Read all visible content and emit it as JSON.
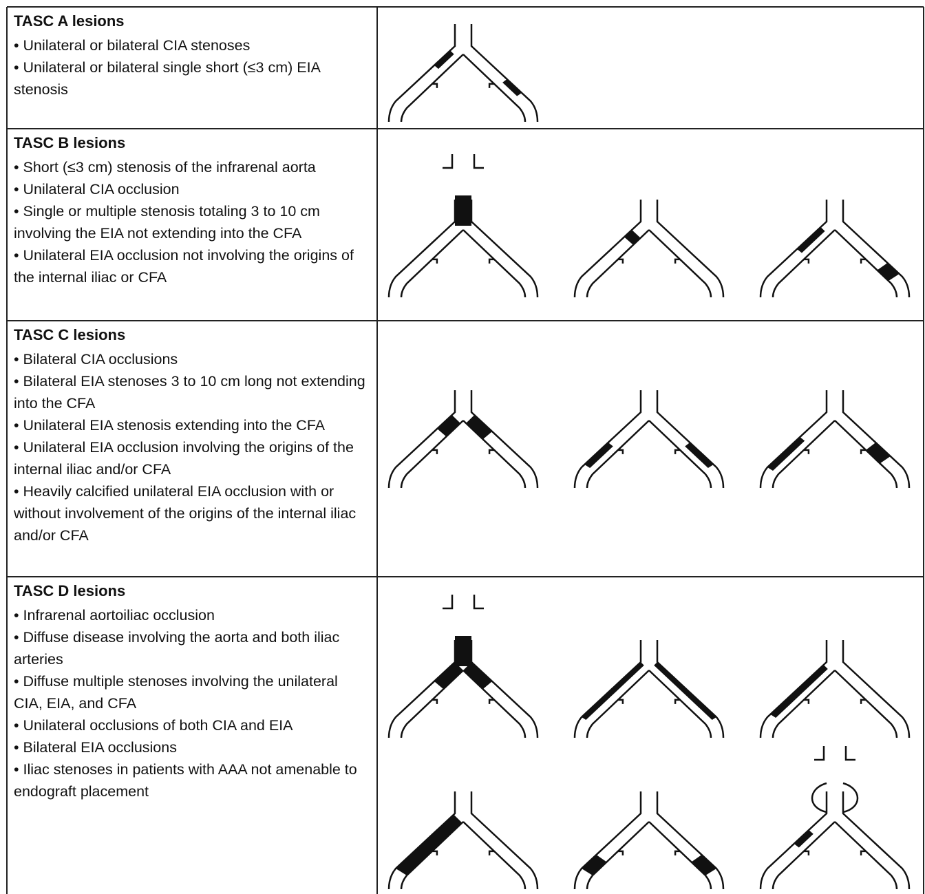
{
  "table": {
    "rows": [
      {
        "title": "TASC A lesions",
        "items": [
          "• Unilateral or bilateral CIA stenoses",
          "• Unilateral or bilateral single short (≤3 cm) EIA stenosis"
        ]
      },
      {
        "title": "TASC B lesions",
        "items": [
          "• Short (≤3 cm) stenosis of the infrarenal aorta",
          "• Unilateral CIA occlusion",
          "• Single or multiple stenosis totaling 3 to 10 cm involving the EIA not extending into the CFA",
          "• Unilateral EIA occlusion not involving the origins of the internal iliac or CFA"
        ]
      },
      {
        "title": "TASC C lesions",
        "items": [
          "• Bilateral CIA occlusions",
          "• Bilateral EIA stenoses 3 to 10 cm long not extending into the CFA",
          "• Unilateral EIA stenosis extending into the CFA",
          "• Unilateral EIA occlusion involving the origins of the internal iliac and/or CFA",
          "• Heavily calcified unilateral EIA occlusion with or without involvement of the origins of the internal iliac and/or CFA"
        ]
      },
      {
        "title": "TASC D lesions",
        "items": [
          "• Infrarenal aortoiliac occlusion",
          "• Diffuse disease involving the aorta and both iliac arteries",
          "• Diffuse multiple stenoses involving the unilateral CIA, EIA, and CFA",
          "• Unilateral occlusions of both CIA and EIA",
          "• Bilateral EIA occlusions",
          "• Iliac stenoses in patients with AAA not amenable to endograft placement"
        ]
      }
    ]
  }
}
